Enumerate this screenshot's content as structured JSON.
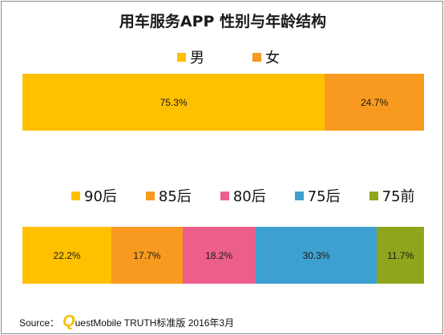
{
  "chart_data": [
    {
      "type": "bar",
      "title": "用车服务APP  性别与年龄结构",
      "stacked": true,
      "orientation": "horizontal",
      "legend_position": "top",
      "series": [
        {
          "name": "男",
          "value": 75.3,
          "label": "75.3%",
          "color": "#ffc000"
        },
        {
          "name": "女",
          "value": 24.7,
          "label": "24.7%",
          "color": "#f79a1f"
        }
      ]
    },
    {
      "type": "bar",
      "stacked": true,
      "orientation": "horizontal",
      "legend_position": "top",
      "series": [
        {
          "name": "90后",
          "value": 22.2,
          "label": "22.2%",
          "color": "#ffc000"
        },
        {
          "name": "85后",
          "value": 17.7,
          "label": "17.7%",
          "color": "#f79a1f"
        },
        {
          "name": "80后",
          "value": 18.2,
          "label": "18.2%",
          "color": "#ec5f8b"
        },
        {
          "name": "75后",
          "value": 30.3,
          "label": "30.3%",
          "color": "#3ea0d0"
        },
        {
          "name": "75前",
          "value": 11.7,
          "label": "11.7%",
          "color": "#8ea51c"
        }
      ]
    }
  ],
  "source": {
    "prefix": "Source：",
    "logo_letter": "Q",
    "text": "uestMobile TRUTH标准版 2016年3月"
  }
}
